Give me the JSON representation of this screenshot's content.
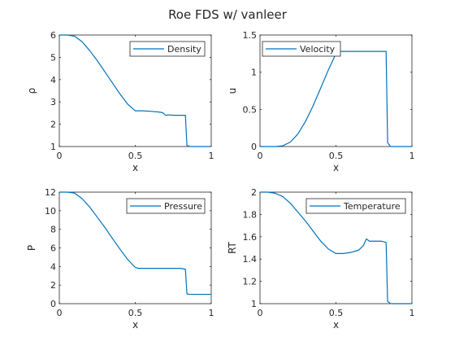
{
  "figure": {
    "title": "Roe FDS w/ vanleer"
  },
  "colors": {
    "series": "#0072BD",
    "axes": "#262626",
    "background": "#ffffff"
  },
  "chart_data": [
    {
      "type": "line",
      "xlabel": "x",
      "ylabel": "ρ",
      "xlim": [
        0,
        1
      ],
      "ylim": [
        1,
        6
      ],
      "xticks": [
        "0",
        "0.5",
        "1"
      ],
      "yticks": [
        "1",
        "2",
        "3",
        "4",
        "5",
        "6"
      ],
      "legend_placement": "top-right",
      "grid": false,
      "series": [
        {
          "name": "Density",
          "x": [
            0,
            0.05,
            0.1,
            0.15,
            0.2,
            0.25,
            0.3,
            0.35,
            0.4,
            0.45,
            0.5,
            0.55,
            0.6,
            0.65,
            0.68,
            0.7,
            0.72,
            0.75,
            0.8,
            0.83,
            0.84,
            0.86,
            0.9,
            1.0
          ],
          "y": [
            6.0,
            6.0,
            5.95,
            5.7,
            5.3,
            4.85,
            4.35,
            3.85,
            3.35,
            2.9,
            2.6,
            2.6,
            2.58,
            2.55,
            2.52,
            2.4,
            2.42,
            2.4,
            2.4,
            2.4,
            1.05,
            1.0,
            1.0,
            1.0
          ]
        }
      ]
    },
    {
      "type": "line",
      "xlabel": "x",
      "ylabel": "u",
      "xlim": [
        0,
        1
      ],
      "ylim": [
        0,
        1.5
      ],
      "xticks": [
        "0",
        "0.5",
        "1"
      ],
      "yticks": [
        "0",
        "0.5",
        "1",
        "1.5"
      ],
      "legend_placement": "top-left",
      "grid": false,
      "series": [
        {
          "name": "Velocity",
          "x": [
            0,
            0.1,
            0.15,
            0.2,
            0.25,
            0.3,
            0.35,
            0.4,
            0.45,
            0.5,
            0.52,
            0.6,
            0.7,
            0.8,
            0.83,
            0.84,
            0.86,
            0.9,
            1.0
          ],
          "y": [
            0,
            0,
            0.01,
            0.06,
            0.17,
            0.34,
            0.55,
            0.79,
            1.03,
            1.25,
            1.28,
            1.28,
            1.28,
            1.28,
            1.28,
            0.05,
            0,
            0,
            0
          ]
        }
      ]
    },
    {
      "type": "line",
      "xlabel": "x",
      "ylabel": "P",
      "xlim": [
        0,
        1
      ],
      "ylim": [
        0,
        12
      ],
      "xticks": [
        "0",
        "0.5",
        "1"
      ],
      "yticks": [
        "0",
        "2",
        "4",
        "6",
        "8",
        "10",
        "12"
      ],
      "legend_placement": "top-right",
      "grid": false,
      "series": [
        {
          "name": "Pressure",
          "x": [
            0,
            0.05,
            0.1,
            0.15,
            0.2,
            0.25,
            0.3,
            0.35,
            0.4,
            0.45,
            0.5,
            0.52,
            0.6,
            0.7,
            0.8,
            0.83,
            0.84,
            0.86,
            0.9,
            1.0
          ],
          "y": [
            12.0,
            12.0,
            11.9,
            11.3,
            10.4,
            9.3,
            8.2,
            7.0,
            5.85,
            4.75,
            3.9,
            3.8,
            3.8,
            3.8,
            3.8,
            3.7,
            1.05,
            1.0,
            1.0,
            1.0
          ]
        }
      ]
    },
    {
      "type": "line",
      "xlabel": "x",
      "ylabel": "RT",
      "xlim": [
        0,
        1
      ],
      "ylim": [
        1,
        2
      ],
      "xticks": [
        "0",
        "0.5",
        "1"
      ],
      "yticks": [
        "1",
        "1.2",
        "1.4",
        "1.6",
        "1.8",
        "2"
      ],
      "legend_placement": "top-right",
      "grid": false,
      "series": [
        {
          "name": "Temperature",
          "x": [
            0,
            0.05,
            0.1,
            0.15,
            0.2,
            0.25,
            0.3,
            0.35,
            0.4,
            0.45,
            0.5,
            0.55,
            0.6,
            0.65,
            0.68,
            0.7,
            0.72,
            0.75,
            0.8,
            0.83,
            0.84,
            0.86,
            0.9,
            1.0
          ],
          "y": [
            2.0,
            2.0,
            1.99,
            1.96,
            1.9,
            1.82,
            1.74,
            1.65,
            1.56,
            1.49,
            1.45,
            1.45,
            1.46,
            1.48,
            1.52,
            1.58,
            1.56,
            1.56,
            1.56,
            1.55,
            1.02,
            1.0,
            1.0,
            1.0
          ]
        }
      ]
    }
  ]
}
